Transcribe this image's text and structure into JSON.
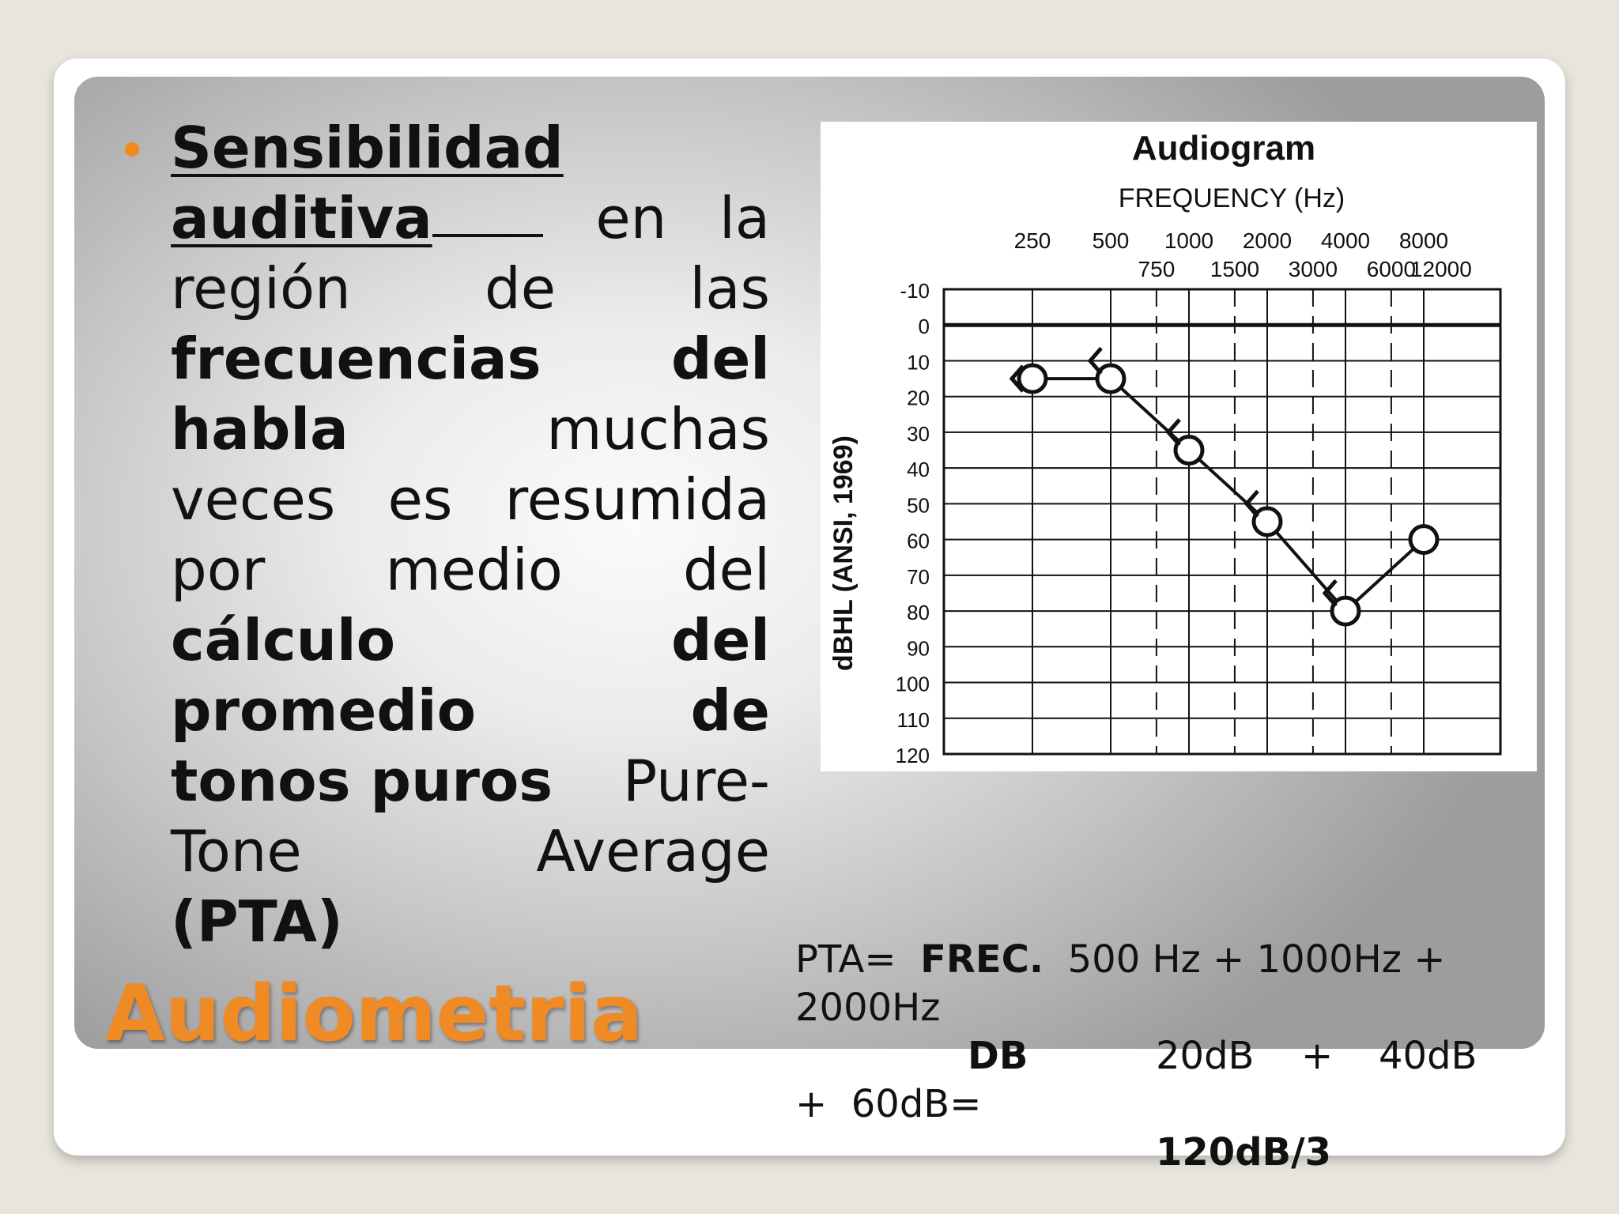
{
  "slide": {
    "bullet": {
      "line1": "Sensibilidad",
      "line2_bold": "auditiva",
      "line2_rest": [
        "en",
        "la"
      ],
      "line3": [
        "región",
        "de",
        "las"
      ],
      "line4": [
        "frecuencias",
        "del"
      ],
      "line5_bold": "habla",
      "line5_rest": "muchas",
      "line6": [
        "veces",
        "es",
        "resumida"
      ],
      "line7": [
        "por",
        "medio",
        "del"
      ],
      "line8": [
        "cálculo",
        "del"
      ],
      "line9": [
        "promedio",
        "de"
      ],
      "line10_bold": "tonos puros",
      "line10_rest": "Pure-",
      "line11": [
        "Tone",
        "Average"
      ],
      "line12": "(PTA)"
    },
    "title": "Audiometria",
    "formula": {
      "pta_label": "PTA=",
      "frec_label": "FREC.",
      "frec_expr": "500 Hz + 1000Hz +",
      "frec_expr2": "2000Hz",
      "db_label": "DB",
      "db_v1": "20dB",
      "plus": "+",
      "db_v2": "40dB",
      "db_line2": "+  60dB=",
      "result": "120dB/3"
    },
    "colors": {
      "accent": "#f08a24",
      "bullet": "#f28a1d"
    }
  },
  "chart_data": {
    "type": "line",
    "title": "Audiogram",
    "xlabel": "FREQUENCY (Hz)",
    "ylabel": "dBHL (ANSI, 1969)",
    "x_ticks_top": [
      "250",
      "500",
      "1000",
      "2000",
      "4000",
      "8000"
    ],
    "x_ticks_bottom": [
      "750",
      "1500",
      "3000",
      "6000",
      "12000"
    ],
    "y_ticks": [
      "-10",
      "0",
      "10",
      "20",
      "30",
      "40",
      "50",
      "60",
      "70",
      "80",
      "90",
      "100",
      "110",
      "120"
    ],
    "ylim": [
      -10,
      120
    ],
    "y_inverted": true,
    "series": [
      {
        "marker": "O",
        "x": [
          250,
          500,
          1000,
          2000,
          4000,
          8000
        ],
        "y": [
          15,
          15,
          35,
          55,
          80,
          60
        ]
      },
      {
        "marker": "<",
        "x": [
          250,
          500,
          1000,
          2000,
          4000
        ],
        "y": [
          15,
          10,
          30,
          50,
          75
        ]
      }
    ]
  }
}
